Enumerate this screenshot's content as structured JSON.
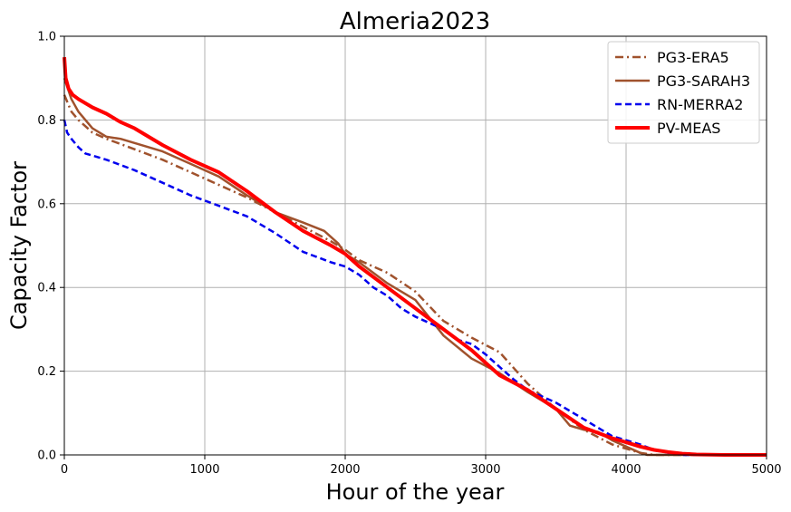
{
  "chart_data": {
    "type": "line",
    "title": "Almeria2023",
    "xlabel": "Hour of the year",
    "ylabel": "Capacity Factor",
    "xlim": [
      0,
      5000
    ],
    "ylim": [
      0,
      1.0
    ],
    "xticks": [
      0,
      1000,
      2000,
      3000,
      4000,
      5000
    ],
    "xtick_labels": [
      "0",
      "1000",
      "2000",
      "3000",
      "4000",
      "5000"
    ],
    "yticks": [
      0,
      0.2,
      0.4,
      0.6,
      0.8,
      1.0
    ],
    "ytick_labels": [
      "0.0",
      "0.2",
      "0.4",
      "0.6",
      "0.8",
      "1.0"
    ],
    "grid": true,
    "legend_position": "top-right",
    "series": [
      {
        "name": "PG3-ERA5",
        "color": "#a0522d",
        "style": "dashdot",
        "width": 2.5,
        "x": [
          0,
          50,
          100,
          200,
          300,
          500,
          700,
          900,
          1100,
          1300,
          1500,
          1700,
          1900,
          2000,
          2100,
          2300,
          2500,
          2700,
          2900,
          3100,
          3300,
          3500,
          3700,
          3900,
          4000,
          4100,
          4200,
          5000
        ],
        "y": [
          0.86,
          0.82,
          0.8,
          0.77,
          0.755,
          0.73,
          0.705,
          0.675,
          0.645,
          0.615,
          0.58,
          0.545,
          0.51,
          0.49,
          0.465,
          0.435,
          0.39,
          0.32,
          0.28,
          0.245,
          0.17,
          0.11,
          0.06,
          0.025,
          0.015,
          0.005,
          0.0,
          0.0
        ]
      },
      {
        "name": "PG3-SARAH3",
        "color": "#a0522d",
        "style": "solid",
        "width": 2.5,
        "x": [
          0,
          50,
          100,
          200,
          300,
          400,
          500,
          700,
          900,
          1100,
          1300,
          1500,
          1700,
          1850,
          1950,
          2000,
          2100,
          2300,
          2500,
          2700,
          2900,
          3100,
          3300,
          3500,
          3600,
          3700,
          3800,
          3900,
          4000,
          4100,
          4150,
          5000
        ],
        "y": [
          0.9,
          0.85,
          0.82,
          0.78,
          0.76,
          0.755,
          0.745,
          0.725,
          0.695,
          0.665,
          0.62,
          0.58,
          0.555,
          0.535,
          0.505,
          0.48,
          0.46,
          0.41,
          0.37,
          0.285,
          0.23,
          0.195,
          0.15,
          0.11,
          0.07,
          0.06,
          0.055,
          0.035,
          0.02,
          0.005,
          0.0,
          0.0
        ]
      },
      {
        "name": "RN-MERRA2",
        "color": "#0000ee",
        "style": "dashed",
        "width": 2.5,
        "x": [
          0,
          20,
          50,
          100,
          150,
          300,
          500,
          700,
          900,
          1100,
          1300,
          1500,
          1700,
          1900,
          2000,
          2100,
          2200,
          2300,
          2400,
          2500,
          2700,
          2800,
          2900,
          3000,
          3100,
          3200,
          3300,
          3500,
          3700,
          3800,
          3900,
          4000,
          4100,
          4200,
          4300,
          4400,
          5000
        ],
        "y": [
          0.8,
          0.77,
          0.755,
          0.735,
          0.72,
          0.705,
          0.68,
          0.65,
          0.62,
          0.595,
          0.57,
          0.53,
          0.485,
          0.46,
          0.45,
          0.43,
          0.4,
          0.38,
          0.35,
          0.33,
          0.3,
          0.275,
          0.265,
          0.24,
          0.21,
          0.18,
          0.155,
          0.125,
          0.085,
          0.065,
          0.045,
          0.035,
          0.025,
          0.012,
          0.005,
          0.0,
          0.0
        ]
      },
      {
        "name": "PV-MEAS",
        "color": "#ff0000",
        "style": "solid",
        "width": 4,
        "x": [
          0,
          10,
          30,
          60,
          100,
          200,
          300,
          400,
          500,
          600,
          700,
          900,
          1100,
          1300,
          1500,
          1700,
          1900,
          2000,
          2100,
          2300,
          2500,
          2700,
          2900,
          3000,
          3100,
          3300,
          3500,
          3700,
          3900,
          4000,
          4100,
          4200,
          4300,
          4400,
          4500,
          4700,
          5000
        ],
        "y": [
          0.95,
          0.9,
          0.875,
          0.86,
          0.85,
          0.83,
          0.815,
          0.795,
          0.78,
          0.76,
          0.74,
          0.705,
          0.675,
          0.63,
          0.58,
          0.535,
          0.5,
          0.48,
          0.45,
          0.4,
          0.35,
          0.3,
          0.25,
          0.22,
          0.19,
          0.155,
          0.11,
          0.065,
          0.04,
          0.03,
          0.02,
          0.012,
          0.007,
          0.003,
          0.001,
          0.0,
          0.0
        ]
      }
    ]
  }
}
